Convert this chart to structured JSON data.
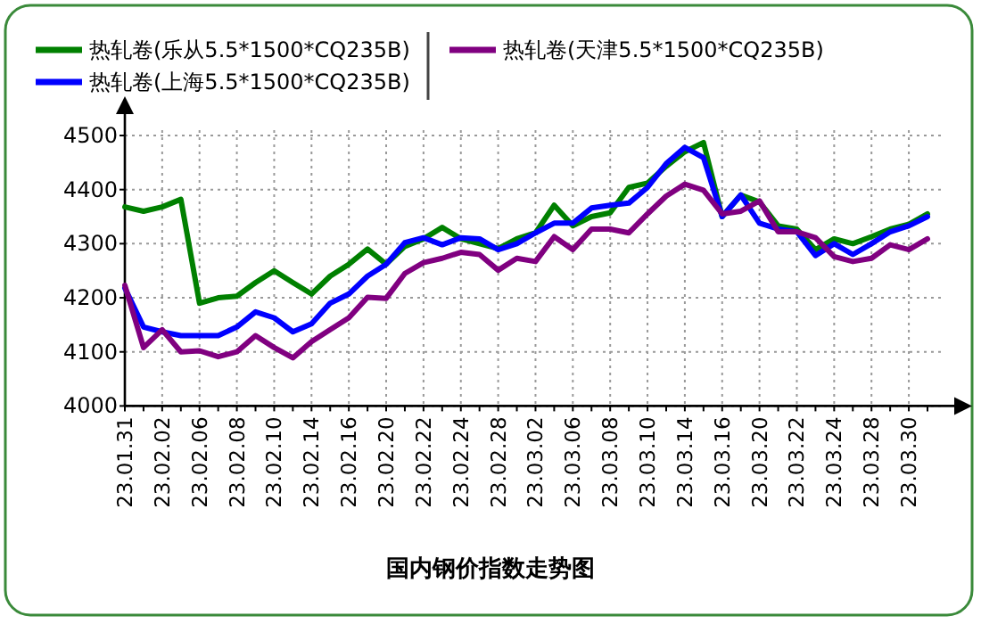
{
  "chart_data": {
    "type": "line",
    "title": "国内钢价指数走势图",
    "categories": [
      "23.01.31",
      null,
      "23.02.02",
      null,
      "23.02.06",
      null,
      "23.02.08",
      null,
      "23.02.10",
      null,
      "23.02.14",
      null,
      "23.02.16",
      null,
      "23.02.20",
      null,
      "23.02.22",
      null,
      "23.02.24",
      null,
      "23.02.28",
      null,
      "23.03.02",
      null,
      "23.03.06",
      null,
      "23.03.08",
      null,
      "23.03.10",
      null,
      "23.03.14",
      null,
      "23.03.16",
      null,
      "23.03.20",
      null,
      "23.03.22",
      null,
      "23.03.24",
      null,
      "23.03.28",
      null,
      "23.03.30",
      null
    ],
    "series": [
      {
        "name": "热轧卷(乐从5.5*1500*CQ235B)",
        "color": "#008000",
        "values": [
          4368,
          4360,
          4368,
          4382,
          4190,
          4200,
          4203,
          4228,
          4250,
          4228,
          4207,
          4240,
          4262,
          4290,
          4262,
          4295,
          4309,
          4330,
          4309,
          4300,
          4291,
          4309,
          4320,
          4371,
          4333,
          4350,
          4357,
          4404,
          4412,
          4443,
          4470,
          4487,
          4350,
          4390,
          4377,
          4333,
          4327,
          4289,
          4309,
          4300,
          4313,
          4327,
          4336,
          4355
        ]
      },
      {
        "name": "热轧卷(上海5.5*1500*CQ235B)",
        "color": "#0000ff",
        "values": [
          4218,
          4146,
          4137,
          4130,
          4130,
          4130,
          4146,
          4174,
          4163,
          4137,
          4152,
          4190,
          4207,
          4240,
          4262,
          4302,
          4311,
          4298,
          4311,
          4309,
          4289,
          4300,
          4320,
          4338,
          4338,
          4366,
          4371,
          4375,
          4404,
          4448,
          4478,
          4459,
          4350,
          4390,
          4338,
          4327,
          4322,
          4278,
          4300,
          4280,
          4300,
          4322,
          4333,
          4350
        ]
      },
      {
        "name": "热轧卷(天津5.5*1500*CQ235B)",
        "color": "#800080",
        "values": [
          4223,
          4108,
          4141,
          4100,
          4102,
          4091,
          4100,
          4130,
          4108,
          4089,
          4119,
          4141,
          4163,
          4201,
          4199,
          4245,
          4265,
          4273,
          4284,
          4280,
          4251,
          4273,
          4267,
          4313,
          4289,
          4327,
          4327,
          4320,
          4355,
          4388,
          4410,
          4399,
          4355,
          4360,
          4379,
          4322,
          4322,
          4311,
          4276,
          4267,
          4273,
          4298,
          4289,
          4309
        ]
      }
    ],
    "ylim": [
      4000,
      4500
    ],
    "yticks": [
      4000,
      4100,
      4200,
      4300,
      4400,
      4500
    ],
    "grid": true,
    "legend": "top"
  }
}
